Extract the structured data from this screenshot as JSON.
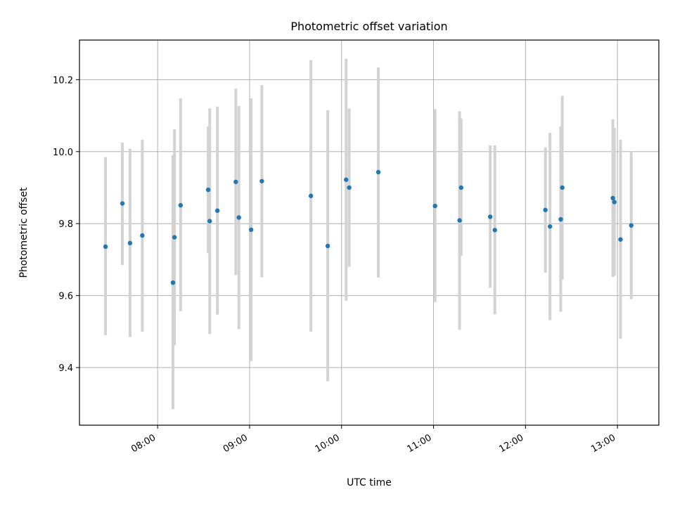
{
  "chart_data": {
    "type": "scatter",
    "title": "Photometric offset variation",
    "xlabel": "UTC time",
    "ylabel": "Photometric offset",
    "x_ticks": [
      "08:00",
      "09:00",
      "10:00",
      "11:00",
      "12:00",
      "13:00"
    ],
    "y_ticks": [
      "9.4",
      "9.6",
      "9.8",
      "10.0",
      "10.2"
    ],
    "xlim": [
      "07:09",
      "13:27"
    ],
    "ylim": [
      9.24,
      10.31
    ],
    "grid": true,
    "marker_color": "#1f77b4",
    "errorbar_color": "#d3d3d3",
    "points": [
      {
        "t": "07:26",
        "y": 9.736,
        "lo": 9.49,
        "hi": 9.985
      },
      {
        "t": "07:37",
        "y": 9.856,
        "lo": 9.685,
        "hi": 10.025
      },
      {
        "t": "07:42",
        "y": 9.746,
        "lo": 9.485,
        "hi": 10.008
      },
      {
        "t": "07:50",
        "y": 9.767,
        "lo": 9.5,
        "hi": 10.033
      },
      {
        "t": "08:10",
        "y": 9.636,
        "lo": 9.285,
        "hi": 9.99
      },
      {
        "t": "08:11",
        "y": 9.762,
        "lo": 9.462,
        "hi": 10.062
      },
      {
        "t": "08:15",
        "y": 9.851,
        "lo": 9.557,
        "hi": 10.148
      },
      {
        "t": "08:33",
        "y": 9.894,
        "lo": 9.718,
        "hi": 10.07
      },
      {
        "t": "08:34",
        "y": 9.807,
        "lo": 9.493,
        "hi": 10.12
      },
      {
        "t": "08:39",
        "y": 9.836,
        "lo": 9.547,
        "hi": 10.125
      },
      {
        "t": "08:51",
        "y": 9.916,
        "lo": 9.657,
        "hi": 10.175
      },
      {
        "t": "08:53",
        "y": 9.817,
        "lo": 9.507,
        "hi": 10.127
      },
      {
        "t": "09:01",
        "y": 9.783,
        "lo": 9.418,
        "hi": 10.148
      },
      {
        "t": "09:08",
        "y": 9.918,
        "lo": 9.651,
        "hi": 10.185
      },
      {
        "t": "09:40",
        "y": 9.877,
        "lo": 9.5,
        "hi": 10.254
      },
      {
        "t": "09:51",
        "y": 9.738,
        "lo": 9.362,
        "hi": 10.115
      },
      {
        "t": "10:03",
        "y": 9.922,
        "lo": 9.586,
        "hi": 10.258
      },
      {
        "t": "10:05",
        "y": 9.9,
        "lo": 9.68,
        "hi": 10.12
      },
      {
        "t": "10:24",
        "y": 9.943,
        "lo": 9.65,
        "hi": 10.234
      },
      {
        "t": "11:01",
        "y": 9.849,
        "lo": 9.582,
        "hi": 10.118
      },
      {
        "t": "11:17",
        "y": 9.809,
        "lo": 9.505,
        "hi": 10.112
      },
      {
        "t": "11:18",
        "y": 9.9,
        "lo": 9.71,
        "hi": 10.092
      },
      {
        "t": "11:37",
        "y": 9.819,
        "lo": 9.622,
        "hi": 10.017
      },
      {
        "t": "11:40",
        "y": 9.782,
        "lo": 9.548,
        "hi": 10.017
      },
      {
        "t": "12:13",
        "y": 9.838,
        "lo": 9.664,
        "hi": 10.012
      },
      {
        "t": "12:16",
        "y": 9.792,
        "lo": 9.532,
        "hi": 10.052
      },
      {
        "t": "12:23",
        "y": 9.812,
        "lo": 9.555,
        "hi": 10.07
      },
      {
        "t": "12:24",
        "y": 9.9,
        "lo": 9.645,
        "hi": 10.155
      },
      {
        "t": "12:57",
        "y": 9.871,
        "lo": 9.652,
        "hi": 10.09
      },
      {
        "t": "12:58",
        "y": 9.86,
        "lo": 9.655,
        "hi": 10.066
      },
      {
        "t": "13:02",
        "y": 9.756,
        "lo": 9.48,
        "hi": 10.033
      },
      {
        "t": "13:09",
        "y": 9.795,
        "lo": 9.59,
        "hi": 10.0
      }
    ]
  }
}
